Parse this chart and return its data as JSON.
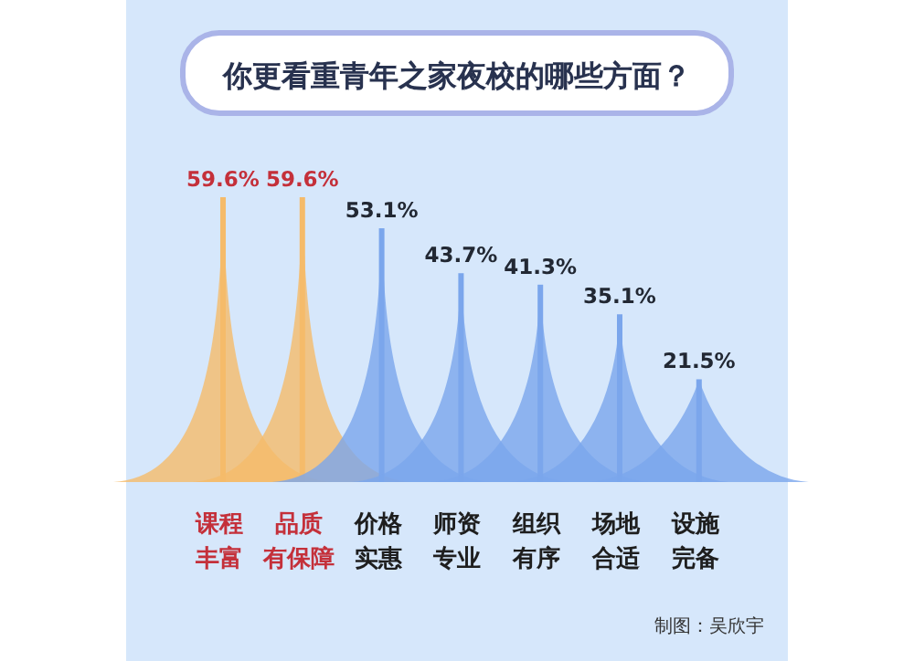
{
  "chart_data": {
    "type": "bar",
    "title": "你更看重青年之家夜校的哪些方面？",
    "categories": [
      "课程丰富",
      "品质有保障",
      "价格实惠",
      "师资专业",
      "组织有序",
      "场地合适",
      "设施完备"
    ],
    "values": [
      59.6,
      59.6,
      53.1,
      43.7,
      41.3,
      35.1,
      21.5
    ],
    "colors": [
      "#f5bb6a",
      "#f5bb6a",
      "#7ba6ec",
      "#7ba6ec",
      "#7ba6ec",
      "#7ba6ec",
      "#7ba6ec"
    ],
    "value_labels": [
      "59.6%",
      "59.6%",
      "53.1%",
      "43.7%",
      "41.3%",
      "35.1%",
      "21.5%"
    ],
    "annotations": [
      "制图：吴欣宇"
    ]
  }
}
